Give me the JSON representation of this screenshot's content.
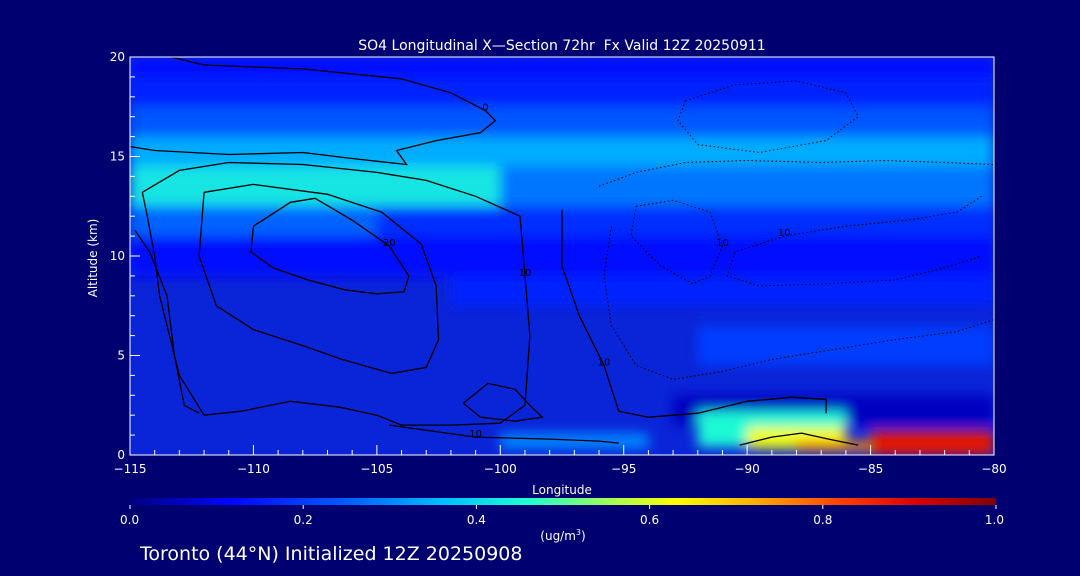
{
  "chart_data": {
    "type": "heatmap",
    "title": "SO4 Longitudinal X—Section 72hr  Fx Valid 12Z 20250911",
    "xlabel": "Longitude",
    "ylabel": "Altitude (km)",
    "xlim": [
      -115,
      -80
    ],
    "ylim": [
      0,
      20
    ],
    "x_ticks": [
      -115,
      -110,
      -105,
      -100,
      -95,
      -90,
      -85,
      -80
    ],
    "y_ticks": [
      0,
      5,
      10,
      15,
      20
    ],
    "x_tick_labels": [
      "−115",
      "−110",
      "−105",
      "−100",
      "−95",
      "−90",
      "−85",
      "−80"
    ],
    "y_tick_labels": [
      "0",
      "5",
      "10",
      "15",
      "20"
    ],
    "colorbar": {
      "min": 0.0,
      "max": 1.0,
      "ticks": [
        0.0,
        0.2,
        0.4,
        0.6,
        0.8,
        1.0
      ],
      "tick_labels": [
        "0.0",
        "0.2",
        "0.4",
        "0.6",
        "0.8",
        "1.0"
      ],
      "unit_label": "(ug/m",
      "unit_sup": "3",
      "unit_close": ")"
    },
    "concentration_regions": [
      {
        "lon": [
          -115,
          -80
        ],
        "alt": [
          19,
          20
        ],
        "value": 0.12
      },
      {
        "lon": [
          -115,
          -80
        ],
        "alt": [
          17.5,
          19
        ],
        "value": 0.16
      },
      {
        "lon": [
          -115,
          -80
        ],
        "alt": [
          16,
          17.5
        ],
        "value": 0.24
      },
      {
        "lon": [
          -115,
          -80
        ],
        "alt": [
          14.5,
          16
        ],
        "value": 0.34
      },
      {
        "lon": [
          -115,
          -100
        ],
        "alt": [
          12.5,
          14.5
        ],
        "value": 0.42
      },
      {
        "lon": [
          -100,
          -80
        ],
        "alt": [
          12.5,
          14.5
        ],
        "value": 0.28
      },
      {
        "lon": [
          -115,
          -105
        ],
        "alt": [
          11,
          12.5
        ],
        "value": 0.26
      },
      {
        "lon": [
          -105,
          -80
        ],
        "alt": [
          11,
          12.5
        ],
        "value": 0.18
      },
      {
        "lon": [
          -115,
          -80
        ],
        "alt": [
          9,
          11
        ],
        "value": 0.12
      },
      {
        "lon": [
          -102,
          -80
        ],
        "alt": [
          7.5,
          9
        ],
        "value": 0.16
      },
      {
        "lon": [
          -92,
          -80
        ],
        "alt": [
          4.5,
          6.5
        ],
        "value": 0.2
      },
      {
        "lon": [
          -93,
          -80
        ],
        "alt": [
          1.5,
          3
        ],
        "value": 0.06
      },
      {
        "lon": [
          -92,
          -86
        ],
        "alt": [
          0.4,
          2.2
        ],
        "value": 0.45
      },
      {
        "lon": [
          -90,
          -86
        ],
        "alt": [
          0.3,
          1.4
        ],
        "value": 0.62
      },
      {
        "lon": [
          -88,
          -85
        ],
        "alt": [
          0.2,
          0.7
        ],
        "value": 0.75
      },
      {
        "lon": [
          -85,
          -80
        ],
        "alt": [
          0,
          1.2
        ],
        "value": 0.88
      },
      {
        "lon": [
          -100,
          -94
        ],
        "alt": [
          0.3,
          1.1
        ],
        "value": 0.3
      }
    ],
    "contours": [
      {
        "label": "0",
        "style": "solid",
        "points": [
          [
            -115,
            20.5
          ],
          [
            -112,
            19.6
          ],
          [
            -108,
            19.4
          ],
          [
            -104,
            18.9
          ],
          [
            -102,
            18.2
          ],
          [
            -100.6,
            17.3
          ],
          [
            -100.2,
            16.8
          ],
          [
            -100.8,
            16.2
          ],
          [
            -102.6,
            15.8
          ],
          [
            -104.2,
            15.3
          ],
          [
            -103.8,
            14.6
          ],
          [
            -106,
            14.9
          ],
          [
            -108,
            15.2
          ],
          [
            -111,
            15.1
          ],
          [
            -114,
            15.3
          ],
          [
            -115,
            15.5
          ]
        ]
      },
      {
        "label": "10",
        "style": "solid",
        "points": [
          [
            -114.5,
            13.2
          ],
          [
            -113,
            14.3
          ],
          [
            -111,
            14.7
          ],
          [
            -108,
            14.6
          ],
          [
            -105,
            14.2
          ],
          [
            -103,
            13.8
          ],
          [
            -101,
            13
          ],
          [
            -99.2,
            12
          ],
          [
            -99,
            9
          ],
          [
            -98.8,
            6
          ],
          [
            -99,
            2.5
          ],
          [
            -100,
            1.6
          ],
          [
            -102,
            1.5
          ],
          [
            -104,
            1.5
          ],
          [
            -105,
            2
          ],
          [
            -106.5,
            2.4
          ],
          [
            -108.5,
            2.7
          ],
          [
            -110.5,
            2.2
          ],
          [
            -112,
            2
          ],
          [
            -113,
            4
          ],
          [
            -113.8,
            8
          ],
          [
            -114,
            10
          ],
          [
            -114.3,
            12
          ],
          [
            -114.5,
            13.2
          ]
        ]
      },
      {
        "label": "20",
        "style": "solid",
        "points": [
          [
            -110,
            11.5
          ],
          [
            -108.5,
            12.7
          ],
          [
            -107.5,
            12.9
          ],
          [
            -106,
            11.8
          ],
          [
            -104.5,
            10.5
          ],
          [
            -103.7,
            9
          ],
          [
            -103.9,
            8.2
          ],
          [
            -105,
            8.1
          ],
          [
            -106.3,
            8.3
          ],
          [
            -107.8,
            8.8
          ],
          [
            -109.2,
            9.4
          ],
          [
            -110.1,
            10.2
          ],
          [
            -110,
            11.5
          ]
        ]
      },
      {
        "label": "",
        "style": "solid",
        "points": [
          [
            -112,
            13.2
          ],
          [
            -110,
            13.6
          ],
          [
            -107,
            13.1
          ],
          [
            -104.8,
            12.2
          ],
          [
            -103.2,
            10.6
          ],
          [
            -102.6,
            8.5
          ],
          [
            -102.5,
            5.8
          ],
          [
            -103,
            4.4
          ],
          [
            -104.4,
            4.1
          ],
          [
            -106.4,
            4.8
          ],
          [
            -108,
            5.5
          ],
          [
            -110,
            6.3
          ],
          [
            -111.5,
            7.5
          ],
          [
            -112.2,
            10
          ],
          [
            -112,
            13.2
          ]
        ]
      },
      {
        "label": "",
        "style": "solid",
        "points": [
          [
            -114.8,
            11.3
          ],
          [
            -114.2,
            10.2
          ],
          [
            -113.5,
            8
          ],
          [
            -113.2,
            5
          ],
          [
            -112.8,
            2.5
          ],
          [
            -112.2,
            2.1
          ]
        ]
      },
      {
        "label": "10",
        "style": "solid",
        "points": [
          [
            -97.5,
            12.3
          ],
          [
            -97.5,
            9.5
          ],
          [
            -96.8,
            7
          ],
          [
            -95.8,
            4.5
          ],
          [
            -95.2,
            2.2
          ],
          [
            -94,
            1.9
          ],
          [
            -92,
            2.1
          ],
          [
            -90,
            2.7
          ],
          [
            -88.2,
            2.9
          ],
          [
            -86.8,
            2.8
          ],
          [
            -86.8,
            2.1
          ]
        ]
      },
      {
        "label": "",
        "style": "solid",
        "points": [
          [
            -101.5,
            2.6
          ],
          [
            -100.5,
            3.6
          ],
          [
            -99.4,
            3.3
          ],
          [
            -98.8,
            2.5
          ],
          [
            -98.3,
            1.9
          ],
          [
            -99.4,
            1.7
          ],
          [
            -100.8,
            1.9
          ],
          [
            -101.5,
            2.6
          ]
        ]
      },
      {
        "label": "10",
        "style": "solid",
        "points": [
          [
            -104.5,
            1.5
          ],
          [
            -101,
            0.9
          ],
          [
            -98,
            0.8
          ],
          [
            -96,
            0.7
          ],
          [
            -95.2,
            0.6
          ]
        ]
      },
      {
        "label": "",
        "style": "solid",
        "points": [
          [
            -90.3,
            0.5
          ],
          [
            -89,
            0.9
          ],
          [
            -87.8,
            1.1
          ],
          [
            -86.7,
            0.8
          ],
          [
            -85.5,
            0.5
          ]
        ]
      },
      {
        "label": "",
        "style": "dotted",
        "points": [
          [
            -92.5,
            17.8
          ],
          [
            -90.5,
            18.6
          ],
          [
            -88,
            18.8
          ],
          [
            -86,
            18.2
          ],
          [
            -85.5,
            17
          ],
          [
            -86.8,
            15.8
          ],
          [
            -89.5,
            15.2
          ],
          [
            -92,
            15.6
          ],
          [
            -92.8,
            16.8
          ],
          [
            -92.5,
            17.8
          ]
        ]
      },
      {
        "label": "",
        "style": "dotted",
        "points": [
          [
            -96,
            13.5
          ],
          [
            -94.5,
            14.2
          ],
          [
            -92.5,
            14.7
          ],
          [
            -90,
            14.8
          ],
          [
            -87,
            14.7
          ],
          [
            -84.5,
            14.8
          ],
          [
            -82,
            14.7
          ],
          [
            -80,
            14.6
          ]
        ]
      },
      {
        "label": "10",
        "style": "dotted",
        "points": [
          [
            -94.5,
            12.5
          ],
          [
            -93,
            12.8
          ],
          [
            -91.5,
            12.2
          ],
          [
            -91,
            10.5
          ],
          [
            -91.5,
            9
          ],
          [
            -92.2,
            8.6
          ],
          [
            -93.5,
            9.5
          ],
          [
            -94.7,
            11
          ],
          [
            -94.5,
            12.5
          ]
        ]
      },
      {
        "label": "10",
        "style": "dotted",
        "points": [
          [
            -80.5,
            13
          ],
          [
            -81.5,
            12.2
          ],
          [
            -83.5,
            11.8
          ],
          [
            -86,
            11.5
          ],
          [
            -88.5,
            11
          ],
          [
            -90.5,
            10.2
          ],
          [
            -90.8,
            9
          ],
          [
            -89.5,
            8.5
          ],
          [
            -87,
            8.6
          ],
          [
            -84,
            8.8
          ],
          [
            -82,
            9.4
          ],
          [
            -80.5,
            10
          ]
        ]
      },
      {
        "label": "",
        "style": "dotted",
        "points": [
          [
            -95.5,
            11.5
          ],
          [
            -95.8,
            9
          ],
          [
            -95.5,
            6.5
          ],
          [
            -94.5,
            4.5
          ],
          [
            -93,
            3.8
          ],
          [
            -91,
            4.2
          ],
          [
            -89,
            4.8
          ],
          [
            -86.5,
            5.3
          ],
          [
            -84,
            5.8
          ],
          [
            -81.5,
            6.2
          ],
          [
            -80,
            6.8
          ]
        ]
      }
    ]
  },
  "footer": {
    "text": "Toronto (44°N) Initialized 12Z 20250908"
  }
}
